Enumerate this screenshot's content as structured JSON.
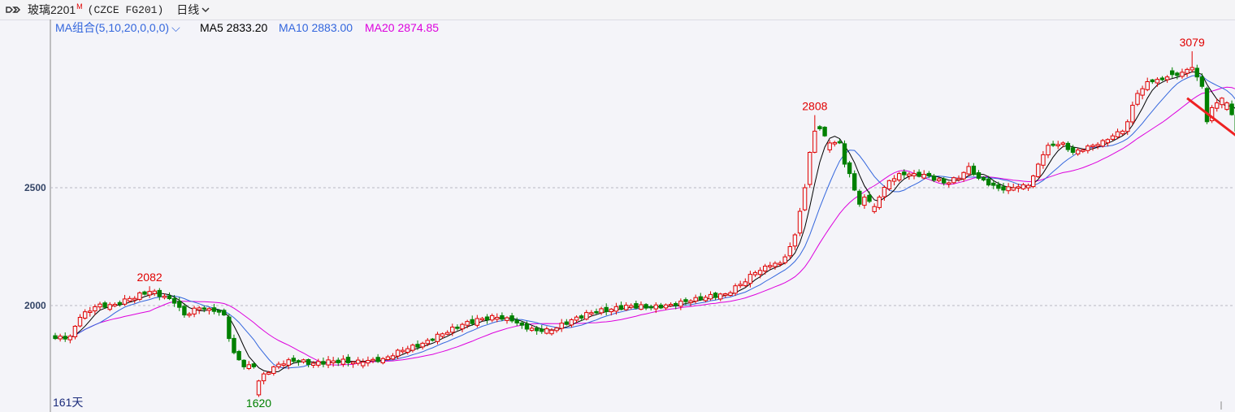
{
  "header": {
    "symbol": "玻璃2201",
    "symbol_sup": "M",
    "code": "(CZCE FG201)",
    "period": "日线"
  },
  "legend": {
    "combo_label": "MA组合(5,10,20,0,0,0)",
    "ma5_label": "MA5 2833.20",
    "ma10_label": "MA10 2883.00",
    "ma20_label": "MA20 2874.85"
  },
  "footer": {
    "days_label": "161天"
  },
  "colors": {
    "up": "#e00000",
    "down": "#008000",
    "ma5": "#000000",
    "ma10": "#3366dd",
    "ma20": "#dd00dd",
    "arrow": "#ee2222",
    "axis_text": "#334466",
    "grid": "#b8b8c4"
  },
  "chart_data": {
    "type": "candlestick",
    "ylim": [
      1600,
      3100
    ],
    "y_ticks": [
      2000,
      2500
    ],
    "grid": "horizontal dashed",
    "annotations": [
      {
        "label": "2082",
        "index": 19,
        "value": 2082,
        "position": "above"
      },
      {
        "label": "1620",
        "index": 41,
        "value": 1620,
        "position": "below"
      },
      {
        "label": "2808",
        "index": 153,
        "value": 2808,
        "position": "above"
      },
      {
        "label": "3079",
        "index": 229,
        "value": 3079,
        "position": "above"
      }
    ],
    "trend_arrow": {
      "direction": "down",
      "from_index": 228,
      "from_value": 2880,
      "to_index": 240,
      "to_value": 2660
    },
    "control_points": [
      [
        0,
        1860,
        "d"
      ],
      [
        3,
        1870,
        "u"
      ],
      [
        5,
        1950,
        "u"
      ],
      [
        8,
        1995,
        "u"
      ],
      [
        12,
        2005,
        "u"
      ],
      [
        15,
        2030,
        "u"
      ],
      [
        19,
        2060,
        "u"
      ],
      [
        22,
        2040,
        "u"
      ],
      [
        24,
        2010,
        "d"
      ],
      [
        26,
        1960,
        "d"
      ],
      [
        29,
        1990,
        "u"
      ],
      [
        32,
        1975,
        "d"
      ],
      [
        34,
        1960,
        "d"
      ],
      [
        35,
        1860,
        "d"
      ],
      [
        36,
        1800,
        "d"
      ],
      [
        37,
        1770,
        "d"
      ],
      [
        38,
        1740,
        "d"
      ],
      [
        40,
        1740,
        "d"
      ],
      [
        41,
        1680,
        "u"
      ],
      [
        42,
        1710,
        "u"
      ],
      [
        44,
        1740,
        "u"
      ],
      [
        47,
        1770,
        "u"
      ],
      [
        52,
        1755,
        "u"
      ],
      [
        56,
        1765,
        "u"
      ],
      [
        62,
        1760,
        "u"
      ],
      [
        66,
        1775,
        "u"
      ],
      [
        70,
        1810,
        "u"
      ],
      [
        74,
        1840,
        "u"
      ],
      [
        78,
        1880,
        "u"
      ],
      [
        82,
        1920,
        "u"
      ],
      [
        86,
        1945,
        "u"
      ],
      [
        89,
        1950,
        "u"
      ],
      [
        92,
        1935,
        "d"
      ],
      [
        95,
        1900,
        "d"
      ],
      [
        98,
        1890,
        "d"
      ],
      [
        100,
        1895,
        "u"
      ],
      [
        104,
        1940,
        "u"
      ],
      [
        108,
        1970,
        "u"
      ],
      [
        112,
        1985,
        "u"
      ],
      [
        116,
        2000,
        "u"
      ],
      [
        120,
        1990,
        "d"
      ],
      [
        124,
        2005,
        "u"
      ],
      [
        128,
        2020,
        "u"
      ],
      [
        131,
        2035,
        "u"
      ],
      [
        135,
        2050,
        "u"
      ],
      [
        138,
        2090,
        "u"
      ],
      [
        141,
        2140,
        "u"
      ],
      [
        144,
        2170,
        "u"
      ],
      [
        146,
        2180,
        "u"
      ],
      [
        148,
        2250,
        "u"
      ],
      [
        149,
        2300,
        "u"
      ],
      [
        150,
        2400,
        "u"
      ],
      [
        151,
        2500,
        "u"
      ],
      [
        152,
        2650,
        "u"
      ],
      [
        153,
        2740,
        "u"
      ],
      [
        154,
        2750,
        "d"
      ],
      [
        155,
        2720,
        "d"
      ],
      [
        156,
        2690,
        "u"
      ],
      [
        158,
        2690,
        "d"
      ],
      [
        159,
        2600,
        "d"
      ],
      [
        160,
        2560,
        "d"
      ],
      [
        161,
        2490,
        "d"
      ],
      [
        162,
        2430,
        "d"
      ],
      [
        163,
        2460,
        "u"
      ],
      [
        165,
        2420,
        "u"
      ],
      [
        166,
        2460,
        "u"
      ],
      [
        168,
        2530,
        "u"
      ],
      [
        170,
        2560,
        "u"
      ],
      [
        173,
        2560,
        "u"
      ],
      [
        176,
        2550,
        "d"
      ],
      [
        179,
        2520,
        "d"
      ],
      [
        182,
        2540,
        "u"
      ],
      [
        184,
        2590,
        "u"
      ],
      [
        186,
        2540,
        "d"
      ],
      [
        189,
        2510,
        "d"
      ],
      [
        191,
        2490,
        "d"
      ],
      [
        193,
        2500,
        "u"
      ],
      [
        196,
        2510,
        "u"
      ],
      [
        197,
        2550,
        "u"
      ],
      [
        198,
        2600,
        "u"
      ],
      [
        199,
        2640,
        "u"
      ],
      [
        200,
        2680,
        "u"
      ],
      [
        203,
        2690,
        "u"
      ],
      [
        205,
        2650,
        "d"
      ],
      [
        207,
        2660,
        "u"
      ],
      [
        209,
        2680,
        "u"
      ],
      [
        211,
        2700,
        "u"
      ],
      [
        213,
        2720,
        "u"
      ],
      [
        215,
        2740,
        "u"
      ],
      [
        216,
        2780,
        "u"
      ],
      [
        217,
        2850,
        "u"
      ],
      [
        218,
        2900,
        "u"
      ],
      [
        219,
        2920,
        "u"
      ],
      [
        220,
        2950,
        "u"
      ],
      [
        222,
        2960,
        "u"
      ],
      [
        224,
        2970,
        "u"
      ],
      [
        225,
        2980,
        "d"
      ],
      [
        227,
        2990,
        "u"
      ],
      [
        229,
        3010,
        "u"
      ],
      [
        230,
        2970,
        "d"
      ],
      [
        231,
        2930,
        "d"
      ],
      [
        232,
        2780,
        "d"
      ],
      [
        233,
        2840,
        "u"
      ],
      [
        234,
        2860,
        "u"
      ],
      [
        235,
        2880,
        "u"
      ],
      [
        236,
        2860,
        "u"
      ],
      [
        237,
        2810,
        "d"
      ],
      [
        238,
        2740,
        "d"
      ]
    ]
  }
}
